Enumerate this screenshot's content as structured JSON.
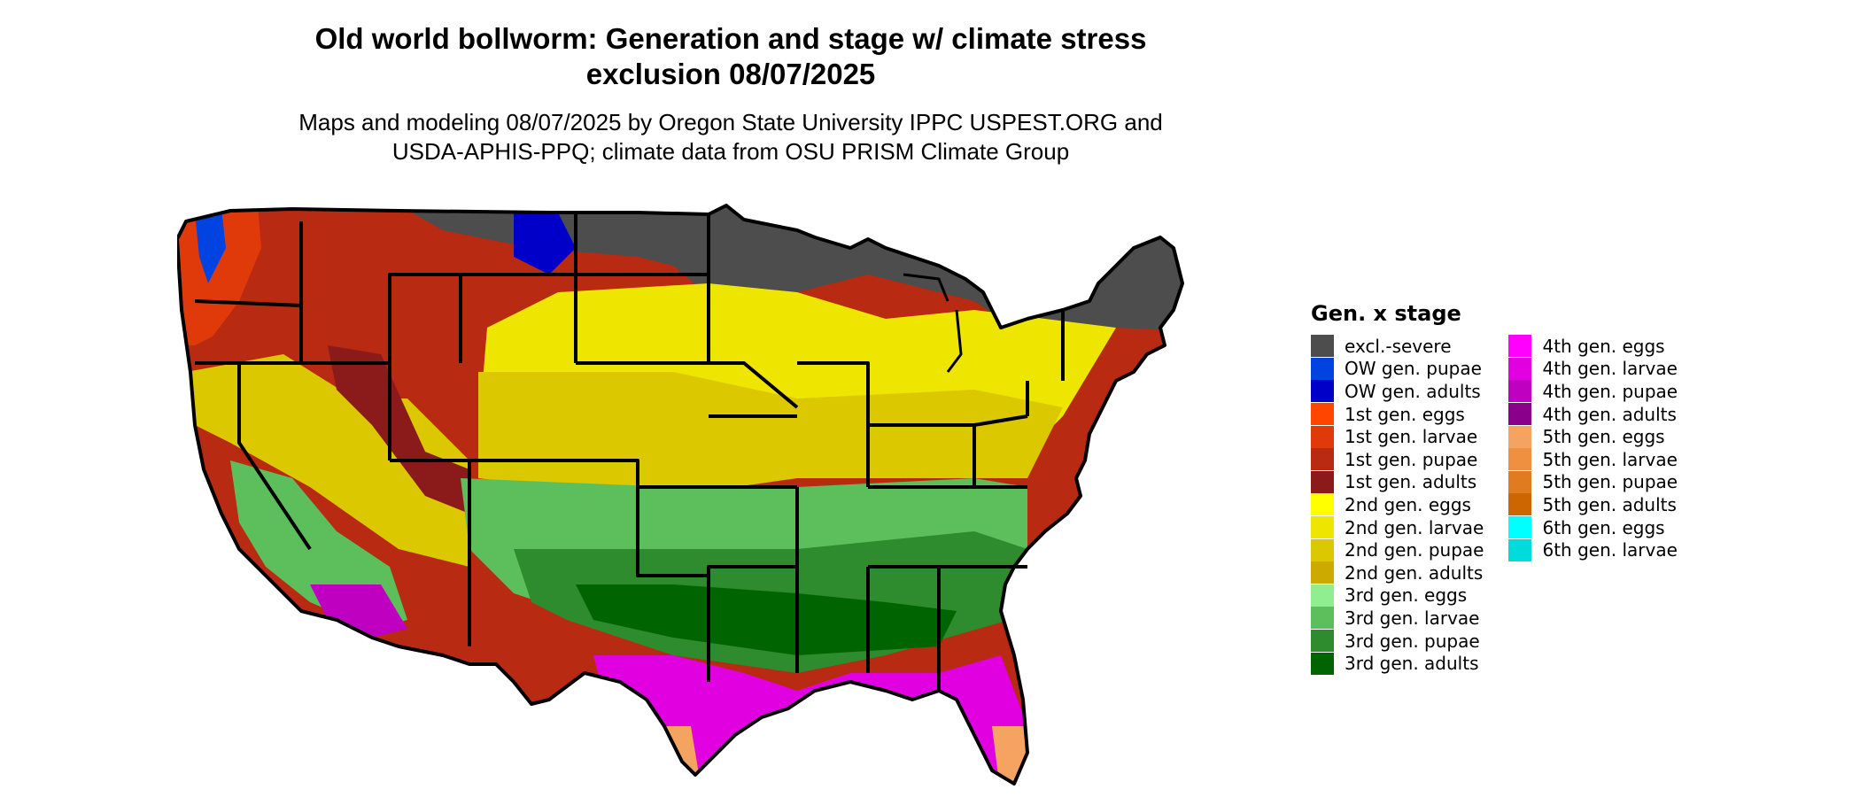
{
  "title_line1": "Old world bollworm: Generation and stage w/ climate stress",
  "title_line2": "exclusion 08/07/2025",
  "subtitle_line1": "Maps and modeling 08/07/2025 by Oregon State University IPPC USPEST.ORG and",
  "subtitle_line2": "USDA-APHIS-PPQ; climate data from OSU PRISM Climate Group",
  "legend": {
    "title": "Gen. x stage",
    "items": [
      {
        "label": "excl.-severe",
        "color": "#4d4d4d"
      },
      {
        "label": "OW gen. pupae",
        "color": "#0043e0"
      },
      {
        "label": "OW gen. adults",
        "color": "#0000c8"
      },
      {
        "label": "1st gen. eggs",
        "color": "#ff4500"
      },
      {
        "label": "1st gen. larvae",
        "color": "#e03a0a"
      },
      {
        "label": "1st gen. pupae",
        "color": "#b82a12"
      },
      {
        "label": "1st gen. adults",
        "color": "#8b1a1a"
      },
      {
        "label": "2nd gen. eggs",
        "color": "#ffff00"
      },
      {
        "label": "2nd gen. larvae",
        "color": "#eee600"
      },
      {
        "label": "2nd gen. pupae",
        "color": "#dcc800"
      },
      {
        "label": "2nd gen. adults",
        "color": "#ccaa00"
      },
      {
        "label": "3rd gen. eggs",
        "color": "#90ee90"
      },
      {
        "label": "3rd gen. larvae",
        "color": "#5cbf5c"
      },
      {
        "label": "3rd gen. pupae",
        "color": "#2e8b2e"
      },
      {
        "label": "3rd gen. adults",
        "color": "#006400"
      },
      {
        "label": "4th gen. eggs",
        "color": "#ff00ff"
      },
      {
        "label": "4th gen. larvae",
        "color": "#e000e0"
      },
      {
        "label": "4th gen. pupae",
        "color": "#c000c0"
      },
      {
        "label": "4th gen. adults",
        "color": "#8b008b"
      },
      {
        "label": "5th gen. eggs",
        "color": "#f4a460"
      },
      {
        "label": "5th gen. larvae",
        "color": "#ee9040"
      },
      {
        "label": "5th gen. pupae",
        "color": "#e07b20"
      },
      {
        "label": "5th gen. adults",
        "color": "#cd6600"
      },
      {
        "label": "6th gen. eggs",
        "color": "#00ffff"
      },
      {
        "label": "6th gen. larvae",
        "color": "#00dcdc"
      }
    ]
  }
}
